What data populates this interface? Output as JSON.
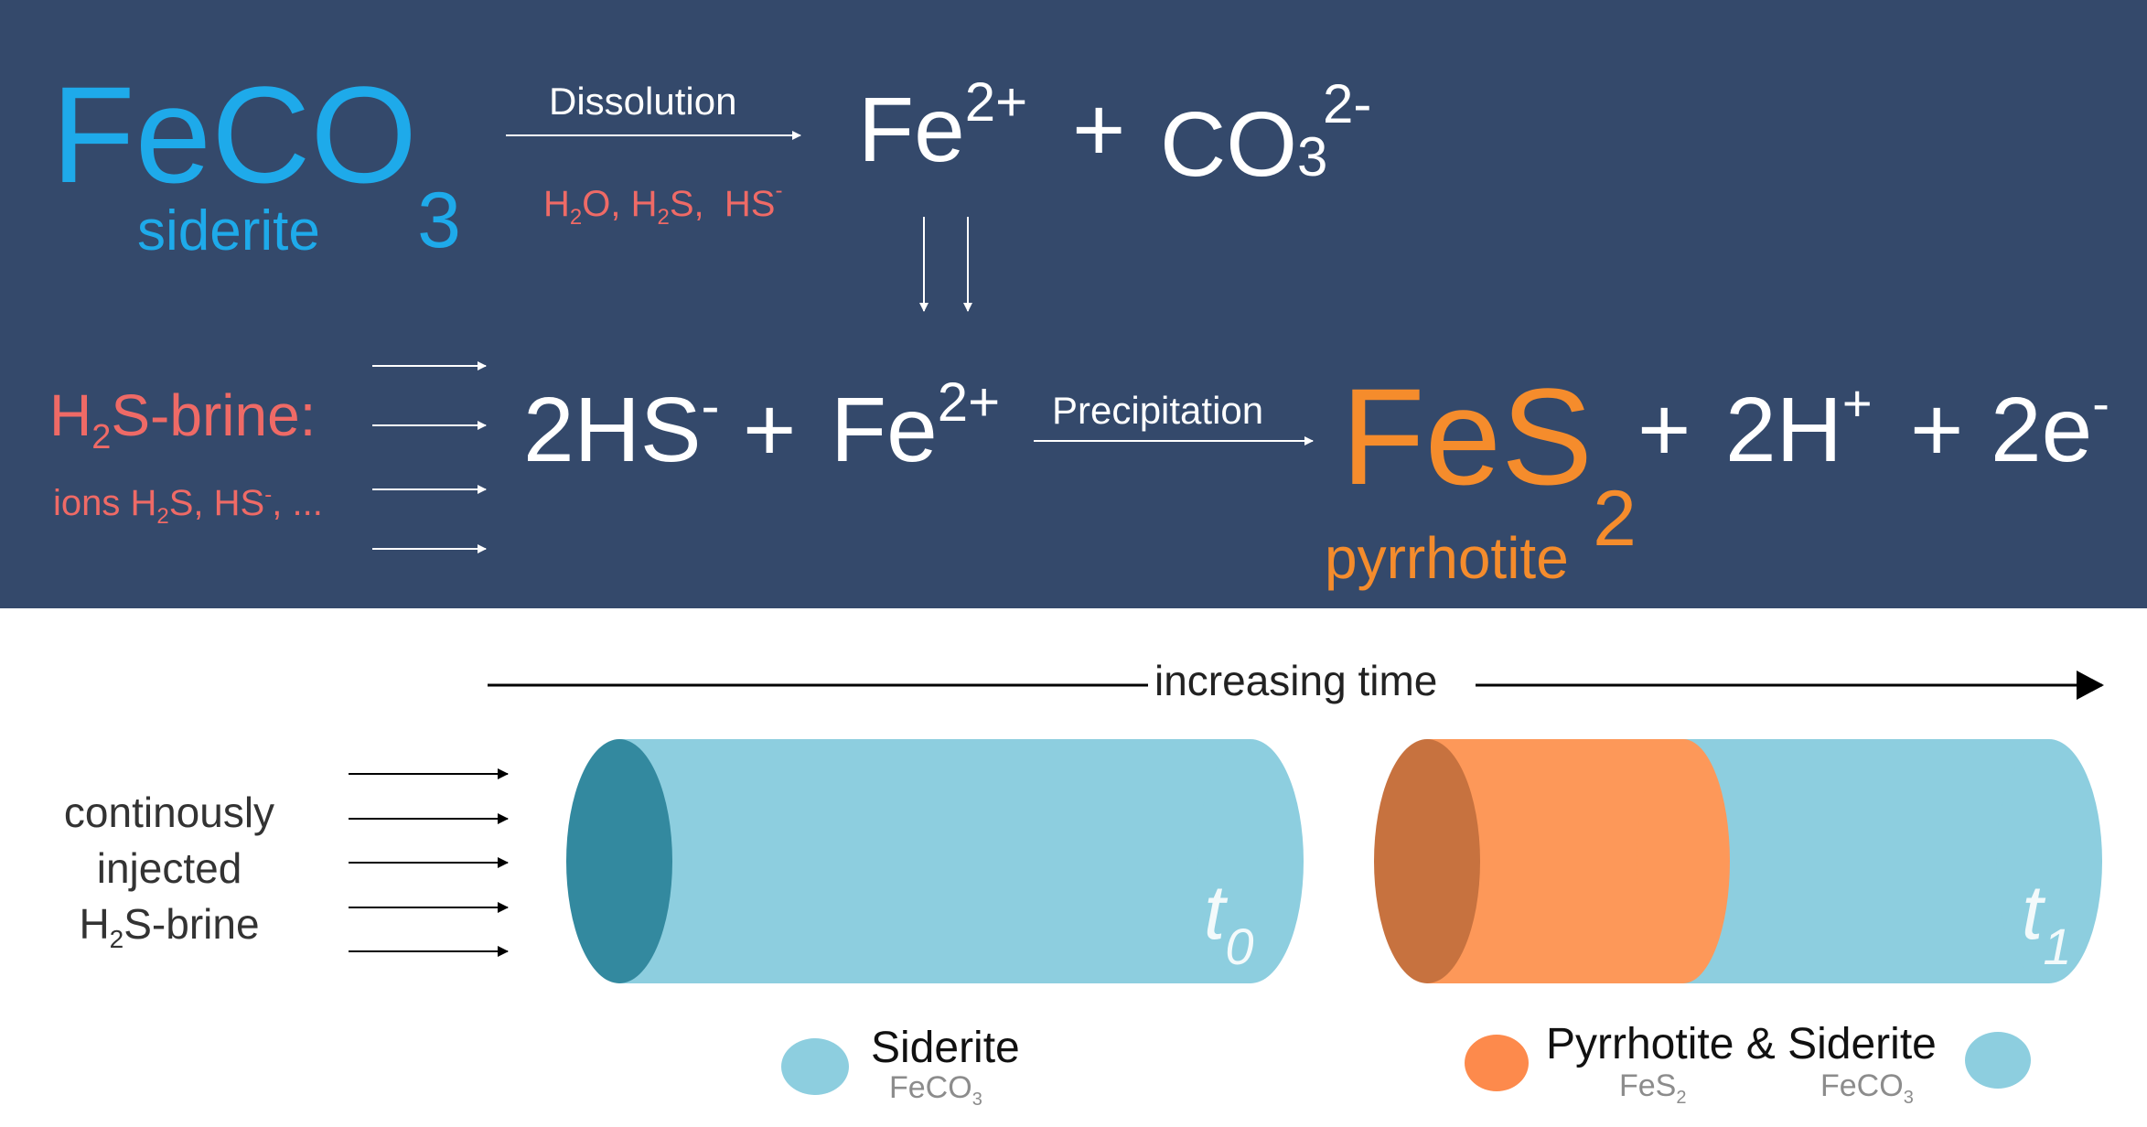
{
  "reaction1": {
    "reactant": {
      "base": "FeCO",
      "sub": "3",
      "name": "siderite"
    },
    "arrow_label": "Dissolution",
    "conditions": {
      "h2o_a": "H",
      "h2o_sub": "2",
      "h2o_b": "O,",
      "h2s_a": "H",
      "h2s_sub": "2",
      "h2s_b": "S,",
      "hs_base": "HS",
      "hs_sup": "-"
    },
    "product_fe": {
      "base": "Fe",
      "sup": "2+"
    },
    "plus": "+",
    "product_co3": {
      "base": "CO",
      "sub": "3",
      "sup": "2-"
    }
  },
  "reaction2": {
    "brine_label": {
      "a": "H",
      "sub": "2",
      "b": "S-brine:"
    },
    "ions_label": {
      "a": "ions H",
      "sub": "2",
      "b": "S, HS",
      "sup": "-",
      "c": ", ..."
    },
    "hs": {
      "base": "2HS",
      "sup": "-"
    },
    "plus1": "+",
    "fe": {
      "base": "Fe",
      "sup": "2+"
    },
    "arrow_label": "Precipitation",
    "product": {
      "base": "FeS",
      "sub": "2",
      "name": "pyrrhotite"
    },
    "plus2": "+",
    "h": {
      "base": "2H",
      "sup": "+"
    },
    "plus3": "+",
    "e": {
      "base": "2e",
      "sup": "-"
    }
  },
  "bottom": {
    "time_label": "increasing time",
    "injection": {
      "line1": "continously",
      "line2": "injected",
      "line3_a": "H",
      "line3_sub": "2",
      "line3_b": "S-brine"
    },
    "cyl0": {
      "label_base": "t",
      "label_sub": "0"
    },
    "cyl1": {
      "label_base": "t",
      "label_sub": "1"
    },
    "legend_siderite": {
      "name": "Siderite",
      "formula_base": "FeCO",
      "formula_sub": "3"
    },
    "legend_pyrrhotite_siderite": {
      "name": "Pyrrhotite & Siderite",
      "fes2_base": "FeS",
      "fes2_sub": "2",
      "feco3_base": "FeCO",
      "feco3_sub": "3"
    }
  },
  "colors": {
    "header_bg": "#34496b",
    "siderite_blue": "#1eaaea",
    "h2s_red": "#ef6a66",
    "pyrrhotite_orange": "#f58c2c",
    "cylinder_blue": "#8dcedf",
    "cylinder_blue_end": "#33899f",
    "cylinder_orange": "#fd9859",
    "cylinder_orange_end": "#c7723f"
  }
}
